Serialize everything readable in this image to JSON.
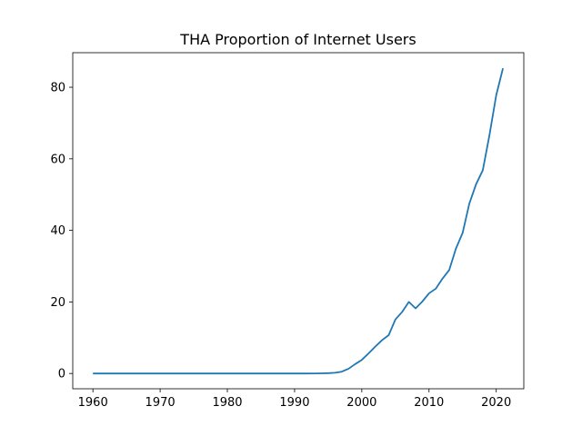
{
  "chart_data": {
    "type": "line",
    "title": "THA Proportion of Internet Users",
    "xlabel": "",
    "ylabel": "",
    "xlim": [
      1957,
      2024.1
    ],
    "ylim": [
      -4.27,
      89.66
    ],
    "grid": false,
    "xticks": [
      1960,
      1970,
      1980,
      1990,
      2000,
      2010,
      2020
    ],
    "yticks": [
      0,
      20,
      40,
      60,
      80
    ],
    "colors": {
      "series": "#1f77b4"
    },
    "series": [
      {
        "x": [
          1960,
          1961,
          1962,
          1963,
          1964,
          1965,
          1966,
          1967,
          1968,
          1969,
          1970,
          1971,
          1972,
          1973,
          1974,
          1975,
          1976,
          1977,
          1978,
          1979,
          1980,
          1981,
          1982,
          1983,
          1984,
          1985,
          1986,
          1987,
          1988,
          1989,
          1990,
          1991,
          1992,
          1993,
          1994,
          1995,
          1996,
          1997,
          1998,
          1999,
          2000,
          2001,
          2002,
          2003,
          2004,
          2005,
          2006,
          2007,
          2008,
          2009,
          2010,
          2011,
          2012,
          2013,
          2014,
          2015,
          2016,
          2017,
          2018,
          2019,
          2020,
          2021
        ],
        "y": [
          0,
          0,
          0,
          0,
          0,
          0,
          0,
          0,
          0,
          0,
          0,
          0,
          0,
          0,
          0,
          0,
          0,
          0,
          0,
          0,
          0,
          0,
          0,
          0,
          0,
          0,
          0,
          0,
          0,
          0,
          0,
          0,
          0,
          0.01,
          0.05,
          0.1,
          0.2,
          0.5,
          1.3,
          2.6,
          3.8,
          5.6,
          7.5,
          9.3,
          10.7,
          15.1,
          17.2,
          20.0,
          18.2,
          20.1,
          22.4,
          23.7,
          26.5,
          28.9,
          34.9,
          39.3,
          47.5,
          52.9,
          56.8,
          66.7,
          77.8,
          85.3
        ]
      }
    ]
  }
}
